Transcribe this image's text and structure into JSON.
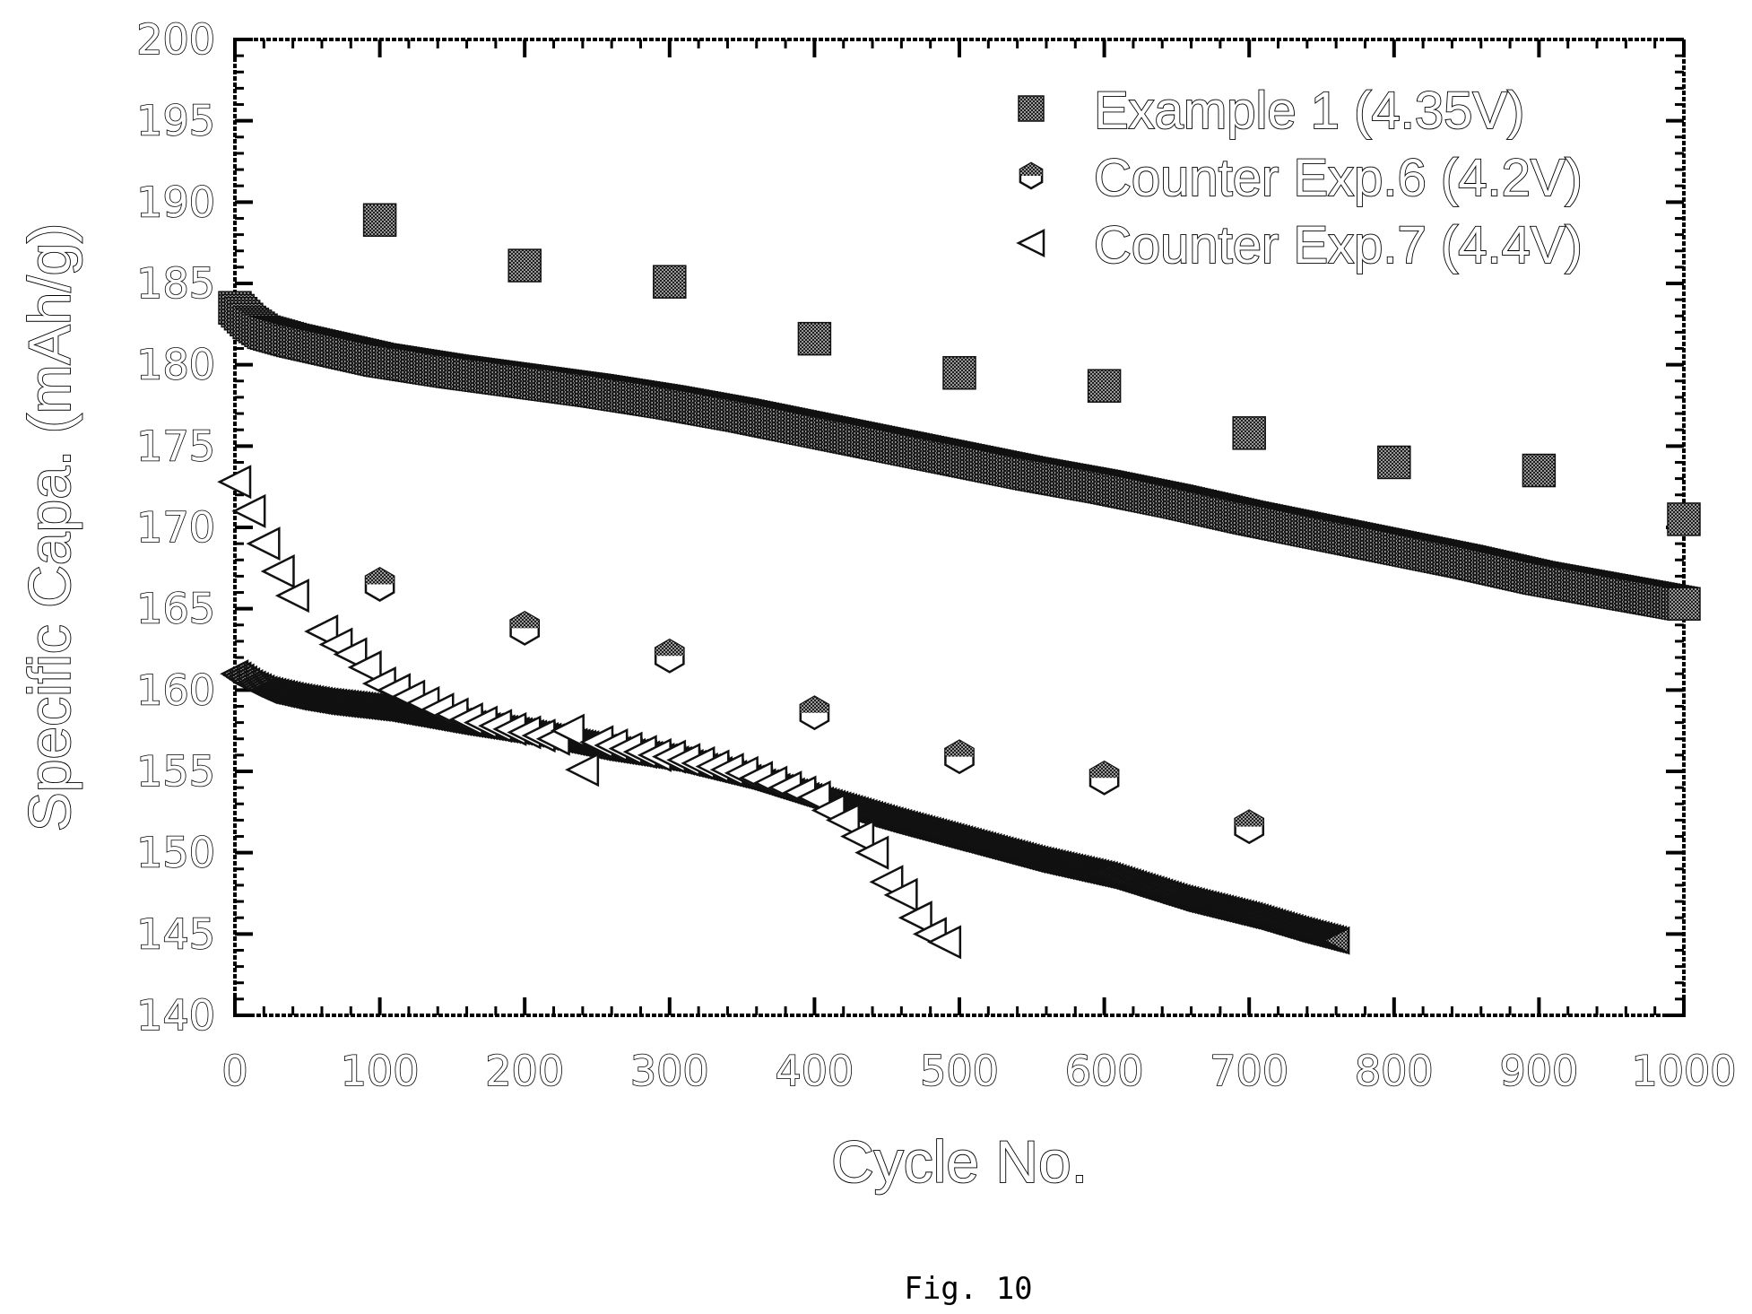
{
  "chart_data": {
    "type": "scatter",
    "xlabel": "Cycle No.",
    "ylabel": "Specific Capa. (mAh/g)",
    "xlim": [
      0,
      1000
    ],
    "ylim": [
      140,
      200
    ],
    "xticks": [
      "0",
      "100",
      "200",
      "300",
      "400",
      "500",
      "600",
      "700",
      "800",
      "900",
      "1000"
    ],
    "yticks": [
      "140",
      "145",
      "150",
      "155",
      "160",
      "165",
      "170",
      "175",
      "180",
      "185",
      "190",
      "195",
      "200"
    ],
    "legend_position": "top-right",
    "grid": false,
    "caption": "Fig. 10",
    "series": [
      {
        "name": "Example 1 (4.35V)",
        "marker": "square",
        "color": "#555555",
        "dense": {
          "x": [
            0,
            10,
            20,
            40,
            60,
            80,
            100,
            150,
            200,
            250,
            300,
            350,
            400,
            450,
            500,
            550,
            600,
            650,
            700,
            750,
            800,
            850,
            900,
            950,
            1000
          ],
          "y": [
            183.5,
            182.6,
            182.0,
            181.5,
            181.1,
            180.7,
            180.3,
            179.6,
            179.0,
            178.4,
            177.7,
            176.9,
            176.0,
            175.1,
            174.2,
            173.3,
            172.5,
            171.6,
            170.6,
            169.7,
            168.8,
            167.9,
            166.9,
            166.1,
            165.3
          ]
        },
        "points": {
          "x": [
            100,
            200,
            300,
            400,
            500,
            600,
            700,
            800,
            900,
            1000
          ],
          "y": [
            188.9,
            186.1,
            185.1,
            181.6,
            179.5,
            178.7,
            175.8,
            174.0,
            173.5,
            170.5
          ]
        }
      },
      {
        "name": "Counter Exp.6 (4.2V)",
        "marker": "hexagon",
        "color": "#444444",
        "dense": {
          "x": [
            0,
            10,
            20,
            40,
            60,
            80,
            100,
            150,
            200,
            250,
            300,
            350,
            400,
            450,
            500,
            550,
            600,
            650,
            700,
            730,
            760
          ],
          "y": [
            161.0,
            160.4,
            160.0,
            159.6,
            159.3,
            159.1,
            158.9,
            158.1,
            157.4,
            156.5,
            155.8,
            154.7,
            153.3,
            152.0,
            150.8,
            149.6,
            148.6,
            147.2,
            146.1,
            145.3,
            144.6
          ]
        },
        "points": {
          "x": [
            100,
            200,
            300,
            400,
            500,
            600,
            700
          ],
          "y": [
            166.5,
            163.8,
            162.1,
            158.6,
            155.9,
            154.6,
            151.6
          ]
        }
      },
      {
        "name": "Counter Exp.7 (4.4V)",
        "marker": "triangle-left",
        "color": "#ffffff",
        "points": {
          "x": [
            0,
            10,
            20,
            30,
            40,
            60,
            70,
            80,
            90,
            100,
            110,
            120,
            130,
            140,
            150,
            160,
            170,
            180,
            190,
            200,
            210,
            220,
            230,
            240,
            250,
            260,
            270,
            280,
            290,
            300,
            310,
            320,
            330,
            340,
            350,
            360,
            370,
            380,
            390,
            400,
            410,
            420,
            430,
            440,
            450,
            460,
            470,
            480,
            490
          ],
          "y": [
            172.8,
            171.0,
            169.0,
            167.3,
            165.8,
            163.6,
            162.8,
            162.2,
            161.4,
            160.4,
            160.0,
            159.6,
            159.2,
            158.8,
            158.5,
            158.2,
            158.0,
            157.8,
            157.6,
            157.4,
            157.2,
            157.0,
            157.5,
            155.1,
            156.8,
            156.6,
            156.4,
            156.2,
            156.0,
            155.9,
            155.7,
            155.5,
            155.3,
            155.1,
            154.9,
            154.6,
            154.3,
            154.0,
            153.7,
            153.4,
            152.6,
            152.0,
            151.0,
            150.0,
            148.2,
            147.4,
            146.0,
            145.0,
            144.5
          ]
        }
      }
    ]
  }
}
